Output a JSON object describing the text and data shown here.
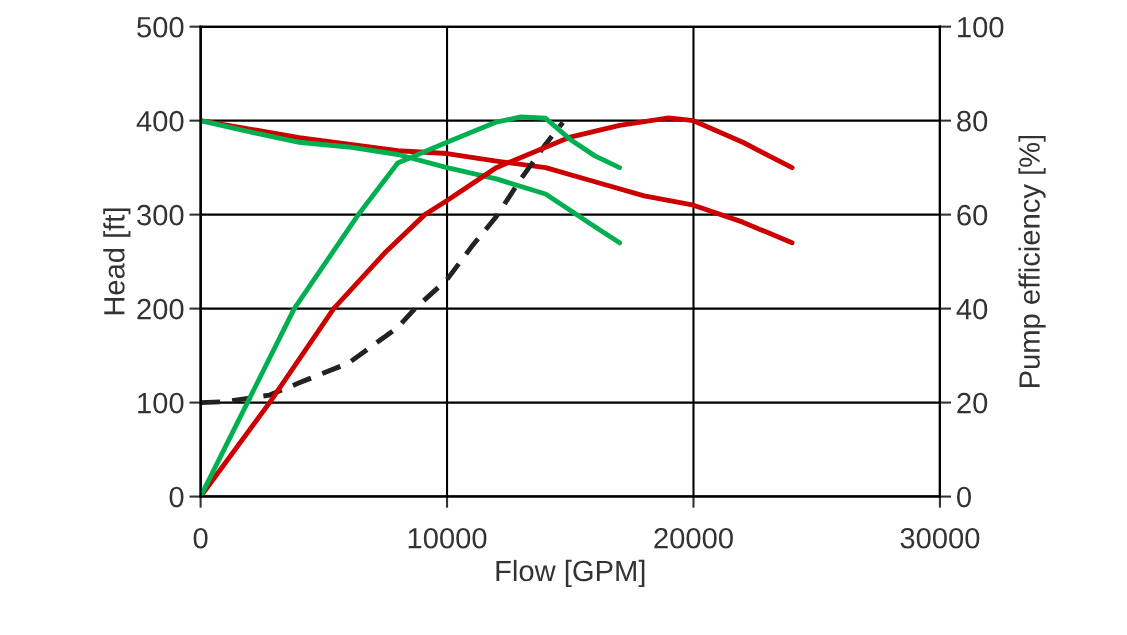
{
  "chart_data": {
    "type": "line",
    "xlabel": "Flow [GPM]",
    "ylabel": "Head [ft]",
    "y2label": "Pump efficiency [%]",
    "xlim": [
      0,
      30000
    ],
    "xticks": [
      0,
      10000,
      20000,
      30000
    ],
    "ylim": [
      0,
      500
    ],
    "yticks": [
      0,
      100,
      200,
      300,
      400,
      500
    ],
    "y2lim": [
      0,
      100
    ],
    "y2ticks": [
      0,
      20,
      40,
      60,
      80,
      100
    ],
    "grid": true,
    "marker": "none",
    "series": [
      {
        "color": "#cc0000",
        "x": [
          0,
          4000,
          8000,
          10000,
          12000,
          14000,
          16000,
          18000,
          20000,
          22000,
          24000
        ],
        "values": [
          400,
          382,
          368,
          365,
          357,
          350,
          335,
          320,
          310,
          292,
          270
        ]
      },
      {
        "color": "#00b050",
        "x": [
          0,
          2000,
          4000,
          6000,
          8000,
          10000,
          12000,
          14000,
          16000,
          17000
        ],
        "values": [
          400,
          388,
          377,
          372,
          364,
          350,
          338,
          322,
          287,
          270
        ]
      },
      {
        "color": "#cc0000",
        "axis": "y2",
        "x": [
          0,
          2800,
          5400,
          7500,
          9100,
          10000,
          12000,
          15000,
          17000,
          19000,
          20000,
          22000,
          24000
        ],
        "values": [
          0,
          20,
          40,
          52,
          60,
          63,
          70,
          76.5,
          79,
          80.6,
          80,
          75.4,
          70
        ]
      },
      {
        "color": "#00b050",
        "axis": "y2",
        "x": [
          0,
          1900,
          3800,
          6400,
          8000,
          10000,
          12000,
          13000,
          14000,
          15000,
          16000,
          17000
        ],
        "values": [
          0,
          20,
          40,
          60,
          71,
          75.4,
          79.7,
          80.8,
          80.5,
          76,
          72.5,
          70
        ]
      },
      {
        "color": "#222222",
        "line_style": "dashed",
        "x": [
          0,
          1000,
          2800,
          4000,
          6000,
          8000,
          8700,
          10000,
          11000,
          12000,
          13000,
          14000,
          14700
        ],
        "values": [
          100,
          101,
          108,
          121,
          142,
          180,
          200,
          231,
          266,
          298,
          338,
          375,
          398
        ]
      }
    ]
  }
}
